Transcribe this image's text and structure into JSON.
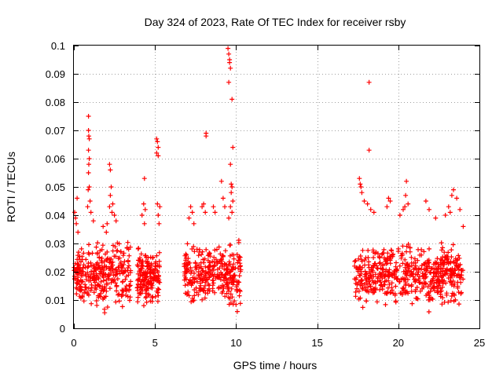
{
  "chart_data": {
    "type": "scatter",
    "title": "Day 324 of 2023, Rate Of TEC Index for receiver rsby",
    "xlabel": "GPS time / hours",
    "ylabel": "ROTI / TECUs",
    "xlim": [
      0,
      25
    ],
    "ylim": [
      0,
      0.1
    ],
    "x_ticks": [
      0,
      5,
      10,
      15,
      20,
      25
    ],
    "y_ticks": [
      0,
      0.01,
      0.02,
      0.03,
      0.04,
      0.05,
      0.06,
      0.07,
      0.08,
      0.09,
      0.1
    ],
    "grid": true,
    "marker": "+",
    "color": "#ff0000",
    "series": [
      {
        "name": "ROTI",
        "clusters": [
          {
            "x_range": [
              0.0,
              3.5
            ],
            "y_range": [
              0.005,
              0.033
            ],
            "count": 320
          },
          {
            "x_range": [
              3.9,
              5.3
            ],
            "y_range": [
              0.005,
              0.031
            ],
            "count": 170
          },
          {
            "x_range": [
              6.8,
              10.3
            ],
            "y_range": [
              0.005,
              0.033
            ],
            "count": 320
          },
          {
            "x_range": [
              17.3,
              24.0
            ],
            "y_range": [
              0.005,
              0.033
            ],
            "count": 560
          }
        ],
        "highlights": [
          {
            "x": 0.05,
            "y": 0.041
          },
          {
            "x": 0.1,
            "y": 0.039
          },
          {
            "x": 0.15,
            "y": 0.037
          },
          {
            "x": 0.2,
            "y": 0.046
          },
          {
            "x": 0.25,
            "y": 0.034
          },
          {
            "x": 0.9,
            "y": 0.075
          },
          {
            "x": 0.9,
            "y": 0.07
          },
          {
            "x": 0.92,
            "y": 0.068
          },
          {
            "x": 0.95,
            "y": 0.067
          },
          {
            "x": 0.9,
            "y": 0.063
          },
          {
            "x": 0.95,
            "y": 0.06
          },
          {
            "x": 0.92,
            "y": 0.058
          },
          {
            "x": 0.9,
            "y": 0.055
          },
          {
            "x": 0.95,
            "y": 0.05
          },
          {
            "x": 0.88,
            "y": 0.049
          },
          {
            "x": 1.0,
            "y": 0.045
          },
          {
            "x": 0.85,
            "y": 0.043
          },
          {
            "x": 1.05,
            "y": 0.041
          },
          {
            "x": 1.2,
            "y": 0.038
          },
          {
            "x": 2.2,
            "y": 0.058
          },
          {
            "x": 2.25,
            "y": 0.056
          },
          {
            "x": 2.3,
            "y": 0.05
          },
          {
            "x": 2.25,
            "y": 0.047
          },
          {
            "x": 2.4,
            "y": 0.044
          },
          {
            "x": 2.2,
            "y": 0.043
          },
          {
            "x": 2.35,
            "y": 0.041
          },
          {
            "x": 2.5,
            "y": 0.04
          },
          {
            "x": 2.6,
            "y": 0.038
          },
          {
            "x": 2.05,
            "y": 0.037
          },
          {
            "x": 1.8,
            "y": 0.036
          },
          {
            "x": 2.0,
            "y": 0.034
          },
          {
            "x": 4.35,
            "y": 0.053
          },
          {
            "x": 4.3,
            "y": 0.044
          },
          {
            "x": 4.4,
            "y": 0.042
          },
          {
            "x": 4.2,
            "y": 0.04
          },
          {
            "x": 4.35,
            "y": 0.037
          },
          {
            "x": 5.1,
            "y": 0.067
          },
          {
            "x": 5.15,
            "y": 0.066
          },
          {
            "x": 5.2,
            "y": 0.064
          },
          {
            "x": 5.1,
            "y": 0.062
          },
          {
            "x": 5.2,
            "y": 0.061
          },
          {
            "x": 5.15,
            "y": 0.044
          },
          {
            "x": 5.3,
            "y": 0.043
          },
          {
            "x": 5.2,
            "y": 0.04
          },
          {
            "x": 5.25,
            "y": 0.037
          },
          {
            "x": 7.2,
            "y": 0.043
          },
          {
            "x": 7.3,
            "y": 0.041
          },
          {
            "x": 7.1,
            "y": 0.039
          },
          {
            "x": 7.4,
            "y": 0.037
          },
          {
            "x": 7.9,
            "y": 0.043
          },
          {
            "x": 8.0,
            "y": 0.044
          },
          {
            "x": 8.1,
            "y": 0.041
          },
          {
            "x": 8.15,
            "y": 0.069
          },
          {
            "x": 8.15,
            "y": 0.068
          },
          {
            "x": 8.6,
            "y": 0.043
          },
          {
            "x": 8.7,
            "y": 0.041
          },
          {
            "x": 9.1,
            "y": 0.052
          },
          {
            "x": 9.2,
            "y": 0.046
          },
          {
            "x": 9.3,
            "y": 0.043
          },
          {
            "x": 9.5,
            "y": 0.099
          },
          {
            "x": 9.55,
            "y": 0.097
          },
          {
            "x": 9.6,
            "y": 0.095
          },
          {
            "x": 9.6,
            "y": 0.094
          },
          {
            "x": 9.65,
            "y": 0.092
          },
          {
            "x": 9.55,
            "y": 0.087
          },
          {
            "x": 9.75,
            "y": 0.081
          },
          {
            "x": 9.8,
            "y": 0.064
          },
          {
            "x": 9.65,
            "y": 0.058
          },
          {
            "x": 9.7,
            "y": 0.051
          },
          {
            "x": 9.75,
            "y": 0.05
          },
          {
            "x": 9.7,
            "y": 0.048
          },
          {
            "x": 9.8,
            "y": 0.045
          },
          {
            "x": 9.65,
            "y": 0.043
          },
          {
            "x": 9.75,
            "y": 0.041
          },
          {
            "x": 9.55,
            "y": 0.039
          },
          {
            "x": 18.2,
            "y": 0.087
          },
          {
            "x": 18.2,
            "y": 0.063
          },
          {
            "x": 17.6,
            "y": 0.053
          },
          {
            "x": 17.65,
            "y": 0.051
          },
          {
            "x": 17.7,
            "y": 0.05
          },
          {
            "x": 17.75,
            "y": 0.048
          },
          {
            "x": 17.9,
            "y": 0.045
          },
          {
            "x": 18.1,
            "y": 0.044
          },
          {
            "x": 18.3,
            "y": 0.042
          },
          {
            "x": 18.5,
            "y": 0.041
          },
          {
            "x": 19.4,
            "y": 0.046
          },
          {
            "x": 19.5,
            "y": 0.045
          },
          {
            "x": 19.3,
            "y": 0.043
          },
          {
            "x": 20.1,
            "y": 0.04
          },
          {
            "x": 20.3,
            "y": 0.042
          },
          {
            "x": 20.5,
            "y": 0.052
          },
          {
            "x": 20.45,
            "y": 0.047
          },
          {
            "x": 20.6,
            "y": 0.044
          },
          {
            "x": 20.4,
            "y": 0.043
          },
          {
            "x": 21.7,
            "y": 0.045
          },
          {
            "x": 21.9,
            "y": 0.042
          },
          {
            "x": 22.3,
            "y": 0.039
          },
          {
            "x": 22.9,
            "y": 0.04
          },
          {
            "x": 23.1,
            "y": 0.043
          },
          {
            "x": 23.3,
            "y": 0.047
          },
          {
            "x": 23.4,
            "y": 0.049
          },
          {
            "x": 23.6,
            "y": 0.046
          },
          {
            "x": 23.8,
            "y": 0.042
          },
          {
            "x": 23.2,
            "y": 0.041
          },
          {
            "x": 24.0,
            "y": 0.036
          }
        ]
      }
    ]
  }
}
